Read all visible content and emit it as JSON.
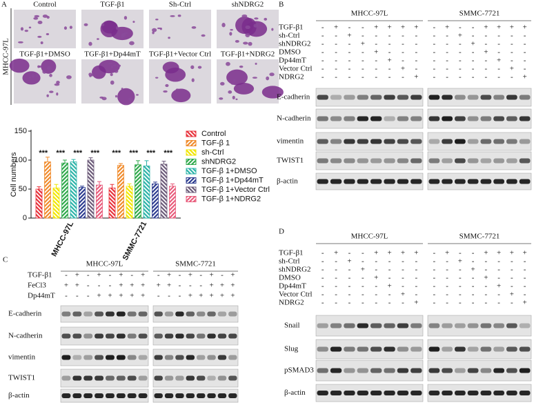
{
  "panel_labels": [
    "A",
    "B",
    "C",
    "D"
  ],
  "panel_a": {
    "cell_line": "MHCC-97L",
    "images": [
      "Control",
      "TGF-β1",
      "Sh-Ctrl",
      "shNDRG2",
      "TGF-β1+DMSO",
      "TGF-β1+Dp44mT",
      "TGF-β1+Vector Ctrl",
      "TGF-β1+NDRG2"
    ]
  },
  "chart_data": {
    "type": "bar",
    "y_label": "Cell numbers",
    "categories": [
      "MHCC-97L",
      "SMMC-7721"
    ],
    "ylim": [
      0,
      150
    ],
    "yticks": [
      0,
      50,
      100,
      150
    ],
    "series": [
      {
        "name": "Control",
        "color": "#e8303a",
        "values": [
          50,
          52
        ],
        "errors": [
          4,
          6
        ]
      },
      {
        "name": "TGF-β 1",
        "color": "#f08a2a",
        "values": [
          97,
          91
        ],
        "errors": [
          8,
          3
        ]
      },
      {
        "name": "sh-Ctrl",
        "color": "#f2e600",
        "values": [
          52,
          55
        ],
        "errors": [
          6,
          4
        ]
      },
      {
        "name": "shNDRG2",
        "color": "#2da84a",
        "values": [
          95,
          92
        ],
        "errors": [
          5,
          7
        ]
      },
      {
        "name": "TGF-β 1+DMSO",
        "color": "#2bb3a8",
        "values": [
          97,
          90
        ],
        "errors": [
          4,
          9
        ]
      },
      {
        "name": "TGF-β 1+Dp44mT",
        "color": "#2b3a8f",
        "values": [
          53,
          59
        ],
        "errors": [
          2,
          3
        ]
      },
      {
        "name": "TGF-β 1+Vector Ctrl",
        "color": "#6b5a78",
        "values": [
          100,
          93
        ],
        "errors": [
          4,
          5
        ]
      },
      {
        "name": "TGF-β 1+NDRG2",
        "color": "#e85a7a",
        "values": [
          57,
          55
        ],
        "errors": [
          6,
          4
        ]
      }
    ],
    "annotations": [
      "***",
      "***",
      "***",
      "***",
      "***",
      "***",
      "***",
      "***"
    ]
  },
  "panel_b": {
    "cell_lines": [
      "MHCC-97L",
      "SMMC-7721"
    ],
    "treatments": [
      {
        "name": "TGF-β1",
        "lanes": [
          "-",
          "+",
          "-",
          "-",
          "+",
          "+",
          "+",
          "+"
        ]
      },
      {
        "name": "sh-Ctrl",
        "lanes": [
          "-",
          "-",
          "+",
          "-",
          "-",
          "-",
          "-",
          "-"
        ]
      },
      {
        "name": "shNDRG2",
        "lanes": [
          "-",
          "-",
          "-",
          "+",
          "-",
          "-",
          "-",
          "-"
        ]
      },
      {
        "name": "DMSO",
        "lanes": [
          "-",
          "-",
          "-",
          "-",
          "+",
          "-",
          "-",
          "-"
        ]
      },
      {
        "name": "Dp44mT",
        "lanes": [
          "-",
          "-",
          "-",
          "-",
          "-",
          "+",
          "-",
          "-"
        ]
      },
      {
        "name": "Vector Ctrl",
        "lanes": [
          "-",
          "-",
          "-",
          "-",
          "-",
          "-",
          "+",
          "-"
        ]
      },
      {
        "name": "NDRG2",
        "lanes": [
          "-",
          "-",
          "-",
          "-",
          "-",
          "-",
          "-",
          "+"
        ]
      }
    ],
    "proteins": [
      "E-cadherin",
      "N-cadherin",
      "vimentin",
      "TWIST1",
      "β-actin"
    ]
  },
  "panel_c": {
    "cell_lines": [
      "MHCC-97L",
      "SMMC-7721"
    ],
    "treatments": [
      {
        "name": "TGF-β1",
        "lanes": [
          "-",
          "+",
          "-",
          "+",
          "-",
          "+",
          "-",
          "+"
        ]
      },
      {
        "name": "FeCl3",
        "lanes": [
          "+",
          "+",
          "-",
          "-",
          "-",
          "+",
          "+",
          "+"
        ]
      },
      {
        "name": "Dp44mT",
        "lanes": [
          "-",
          "-",
          "-",
          "+",
          "+",
          "+",
          "+",
          "+"
        ]
      }
    ],
    "proteins": [
      "E-cadherin",
      "N-cadherin",
      "vimentin",
      "TWIST1",
      "β-actin"
    ]
  },
  "panel_d": {
    "cell_lines": [
      "MHCC-97L",
      "SMMC-7721"
    ],
    "treatments": [
      {
        "name": "TGF-β1",
        "lanes": [
          "-",
          "+",
          "-",
          "-",
          "+",
          "+",
          "+",
          "+"
        ]
      },
      {
        "name": "sh-Ctrl",
        "lanes": [
          "-",
          "-",
          "+",
          "-",
          "-",
          "-",
          "-",
          "-"
        ]
      },
      {
        "name": "shNDRG2",
        "lanes": [
          "-",
          "-",
          "-",
          "+",
          "-",
          "-",
          "-",
          "-"
        ]
      },
      {
        "name": "DMSO",
        "lanes": [
          "-",
          "-",
          "-",
          "-",
          "+",
          "-",
          "-",
          "-"
        ]
      },
      {
        "name": "Dp44mT",
        "lanes": [
          "-",
          "-",
          "-",
          "-",
          "-",
          "+",
          "-",
          "-"
        ]
      },
      {
        "name": "Vector Ctrl",
        "lanes": [
          "-",
          "-",
          "-",
          "-",
          "-",
          "-",
          "+",
          "-"
        ]
      },
      {
        "name": "NDRG2",
        "lanes": [
          "-",
          "-",
          "-",
          "-",
          "-",
          "-",
          "-",
          "+"
        ]
      }
    ],
    "proteins": [
      "Snail",
      "Slug",
      "pSMAD3",
      "β-actin"
    ]
  }
}
